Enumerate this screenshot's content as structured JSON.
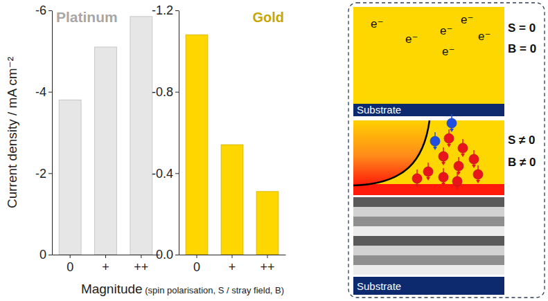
{
  "chart_data": [
    {
      "type": "bar",
      "title": "Platinum",
      "categories": [
        "0",
        "+",
        "++"
      ],
      "values": [
        -3.8,
        -5.1,
        -5.85
      ],
      "color": "#e6e6e6",
      "ylim": [
        0,
        -6
      ],
      "yticks": [
        -6,
        -4,
        -2,
        0
      ],
      "y_label": "Current density / mA cm⁻²",
      "x_label": "Magnitude (spin polarisation, S / stray field, B)"
    },
    {
      "type": "bar",
      "title": "Gold",
      "categories": [
        "0",
        "+",
        "++"
      ],
      "values": [
        -1.08,
        -0.54,
        -0.31
      ],
      "color": "#ffd700",
      "ylim": [
        0,
        -1.2
      ],
      "yticks": [
        -1.2,
        -0.8,
        -0.4,
        {
          "value": 0,
          "label": "0.0"
        }
      ]
    }
  ],
  "diagram": {
    "panels": [
      {
        "electrons": [
          "e⁻",
          "e⁻",
          "e⁻",
          "e⁻",
          "e⁻",
          "e⁻"
        ],
        "labels": [
          "S = 0",
          "B = 0"
        ],
        "substrate": "Substrate"
      },
      {
        "labels": [
          "S ≠ 0",
          "B ≠ 0"
        ],
        "substrate": "Substrate"
      }
    ]
  }
}
